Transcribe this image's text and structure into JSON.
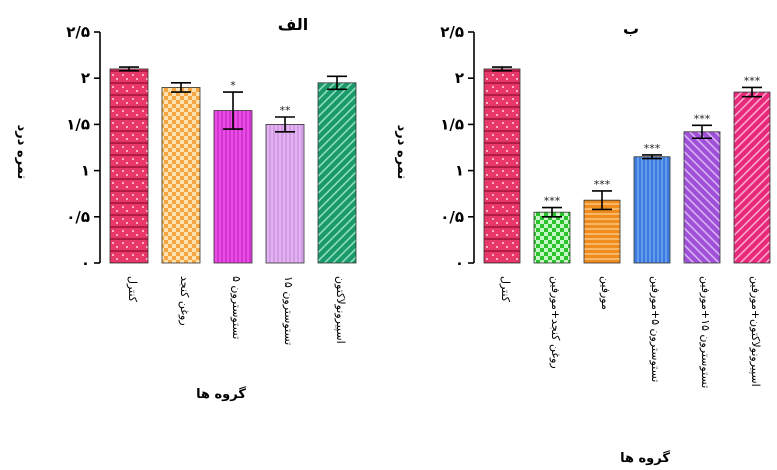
{
  "chart_data": [
    {
      "type": "bar",
      "title": "الف",
      "xlabel": "گروه ها",
      "ylabel": "نمره درد",
      "ylim": [
        0,
        2.5
      ],
      "yticks": [
        "۰",
        "۰/۵",
        "۱",
        "۱/۵",
        "۲",
        "۲/۵"
      ],
      "categories": [
        "کنترل",
        "روغن کنجد",
        "تستوسترون ۵",
        "تستوسترون ۱۵",
        "اسپیرونولاکتون"
      ],
      "values": [
        2.1,
        1.9,
        1.65,
        1.5,
        1.95
      ],
      "errors": [
        0.02,
        0.05,
        0.2,
        0.08,
        0.07
      ],
      "significance": [
        "",
        "",
        "*",
        "**",
        ""
      ],
      "colors": [
        "#e8386a",
        "#f08c1e",
        "#e43ee0",
        "#d68fe8",
        "#1a9a6a"
      ],
      "grid": false
    },
    {
      "type": "bar",
      "title": "ب",
      "xlabel": "گروه ها",
      "ylabel": "نمره درد",
      "ylim": [
        0,
        2.5
      ],
      "yticks": [
        "۰",
        "۰/۵",
        "۱",
        "۱/۵",
        "۲",
        "۲/۵"
      ],
      "categories": [
        "کنترل",
        "روغن کنجد+مورفین",
        "مورفین",
        "تستوسترون ۵+مورفین",
        "تستوسترون ۱۵+مورفین",
        "اسپیرونولاکتون+مورفین"
      ],
      "values": [
        2.1,
        0.55,
        0.68,
        1.15,
        1.42,
        1.85
      ],
      "errors": [
        0.02,
        0.05,
        0.1,
        0.02,
        0.07,
        0.05
      ],
      "significance": [
        "",
        "***",
        "***",
        "***",
        "***",
        "***"
      ],
      "colors": [
        "#e8386a",
        "#2cc42c",
        "#f08c1e",
        "#3b7be0",
        "#a050d8",
        "#e8287a"
      ],
      "grid": false
    }
  ]
}
